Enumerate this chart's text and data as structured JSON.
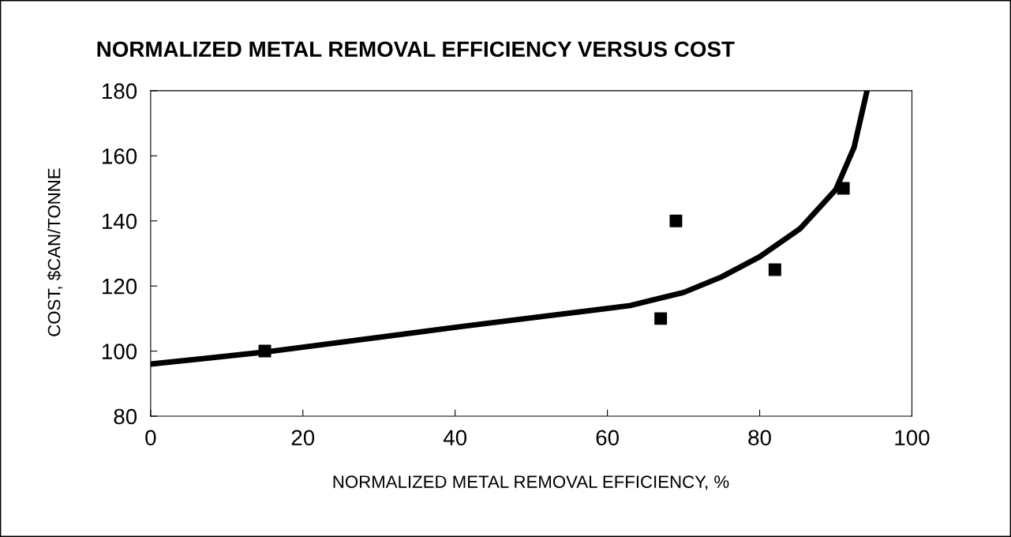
{
  "chart_data": {
    "type": "scatter",
    "title": "NORMALIZED METAL REMOVAL EFFICIENCY VERSUS COST",
    "xlabel": "NORMALIZED METAL REMOVAL EFFICIENCY, %",
    "ylabel": "COST, $CAN/TONNE",
    "xlim": [
      0,
      100
    ],
    "ylim": [
      80,
      180
    ],
    "xticks": [
      0,
      20,
      40,
      60,
      80,
      100
    ],
    "yticks": [
      80,
      100,
      120,
      140,
      160,
      180
    ],
    "grid": false,
    "legend": false,
    "series": [
      {
        "color": "#000000",
        "marker": "square",
        "x": [
          15,
          67,
          69,
          82,
          91
        ],
        "values": [
          100,
          110,
          140,
          125,
          150
        ]
      },
      {
        "type": "line",
        "color": "#000000",
        "marker": "none",
        "line_style": "solid",
        "x": [
          0,
          15,
          40.7,
          63,
          67,
          70,
          75,
          80,
          85.3,
          90,
          92.4,
          94.1
        ],
        "values": [
          96,
          99.7,
          107.5,
          114,
          116.3,
          118,
          122.8,
          129,
          137.6,
          149.6,
          162.6,
          180
        ]
      }
    ]
  }
}
